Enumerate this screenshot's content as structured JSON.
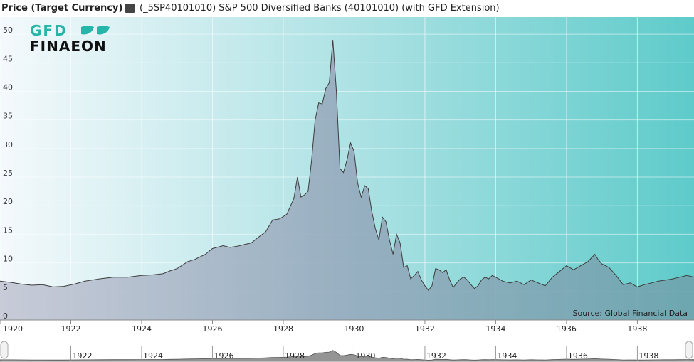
{
  "legend": {
    "y_axis_title": "Price (Target Currency)",
    "series_label": "(_5SP40101010) S&P 500 Diversified Banks (40101010) (with GFD Extension)"
  },
  "logo": {
    "line1": "GFD",
    "line2": "FINAEON"
  },
  "source_credit": "Source: Global Financial Data",
  "colors": {
    "bg_left": "#eef6fa",
    "bg_right": "#5ecbca",
    "area_fill": "#8f9aaa",
    "line": "#3d3d3d",
    "logo": "#26b5a8"
  },
  "chart_data": {
    "type": "area",
    "xlim": [
      1920,
      1939.6
    ],
    "ylim": [
      0,
      53
    ],
    "y_ticks": [
      0,
      5,
      10,
      15,
      20,
      25,
      30,
      35,
      40,
      45,
      50
    ],
    "x_tick_labels": [
      "1920",
      "1922",
      "1924",
      "1926",
      "1928",
      "1930",
      "1932",
      "1934",
      "1936",
      "1938"
    ],
    "x": [
      1920.0,
      1920.3,
      1920.6,
      1920.9,
      1921.2,
      1921.5,
      1921.8,
      1922.1,
      1922.4,
      1922.8,
      1923.2,
      1923.6,
      1924.0,
      1924.3,
      1924.6,
      1924.8,
      1925.0,
      1925.3,
      1925.5,
      1925.8,
      1926.0,
      1926.3,
      1926.5,
      1926.7,
      1926.9,
      1927.1,
      1927.3,
      1927.5,
      1927.7,
      1927.9,
      1928.1,
      1928.3,
      1928.4,
      1928.5,
      1928.6,
      1928.7,
      1928.8,
      1928.9,
      1929.0,
      1929.1,
      1929.2,
      1929.3,
      1929.4,
      1929.5,
      1929.6,
      1929.7,
      1929.8,
      1929.9,
      1930.0,
      1930.1,
      1930.2,
      1930.3,
      1930.4,
      1930.5,
      1930.6,
      1930.7,
      1930.8,
      1930.9,
      1931.0,
      1931.1,
      1931.2,
      1931.3,
      1931.4,
      1931.5,
      1931.6,
      1931.7,
      1931.8,
      1931.9,
      1932.0,
      1932.1,
      1932.2,
      1932.3,
      1932.4,
      1932.5,
      1932.6,
      1932.7,
      1932.8,
      1932.9,
      1933.0,
      1933.1,
      1933.2,
      1933.3,
      1933.4,
      1933.5,
      1933.6,
      1933.7,
      1933.8,
      1933.9,
      1934.0,
      1934.2,
      1934.4,
      1934.6,
      1934.8,
      1935.0,
      1935.2,
      1935.4,
      1935.6,
      1935.8,
      1936.0,
      1936.2,
      1936.4,
      1936.6,
      1936.8,
      1936.9,
      1937.0,
      1937.2,
      1937.4,
      1937.6,
      1937.8,
      1938.0,
      1938.2,
      1938.4,
      1938.6,
      1938.8,
      1939.0,
      1939.2,
      1939.4,
      1939.6
    ],
    "y": [
      6.8,
      6.6,
      6.3,
      6.1,
      6.2,
      5.8,
      5.9,
      6.3,
      6.8,
      7.2,
      7.5,
      7.5,
      7.8,
      7.9,
      8.1,
      8.6,
      9.0,
      10.2,
      10.6,
      11.5,
      12.5,
      13.0,
      12.7,
      12.9,
      13.2,
      13.5,
      14.5,
      15.4,
      17.5,
      17.7,
      18.5,
      21.3,
      25.0,
      21.5,
      21.9,
      22.5,
      28.0,
      35.0,
      38.0,
      37.8,
      40.5,
      41.5,
      49.0,
      40.0,
      26.5,
      25.8,
      28.0,
      31.0,
      29.5,
      24.0,
      21.5,
      23.5,
      23.0,
      19.0,
      16.0,
      14.0,
      18.0,
      17.2,
      14.0,
      11.5,
      15.0,
      13.5,
      9.2,
      9.5,
      7.2,
      7.8,
      8.5,
      7.0,
      6.0,
      5.2,
      6.0,
      9.0,
      8.8,
      8.3,
      8.8,
      7.0,
      5.7,
      6.5,
      7.2,
      7.5,
      7.0,
      6.2,
      5.5,
      6.0,
      7.0,
      7.5,
      7.2,
      7.8,
      7.5,
      6.8,
      6.5,
      6.8,
      6.2,
      7.0,
      6.5,
      6.0,
      7.5,
      8.5,
      9.5,
      8.8,
      9.5,
      10.2,
      11.5,
      10.5,
      9.8,
      9.2,
      7.8,
      6.2,
      6.5,
      5.8,
      6.2,
      6.5,
      6.8,
      7.0,
      7.2,
      7.5,
      7.8,
      7.5
    ]
  },
  "navigator": {
    "x_tick_labels": [
      "1922",
      "1924",
      "1926",
      "1928",
      "1930",
      "1932",
      "1934",
      "1936",
      "1938"
    ]
  }
}
